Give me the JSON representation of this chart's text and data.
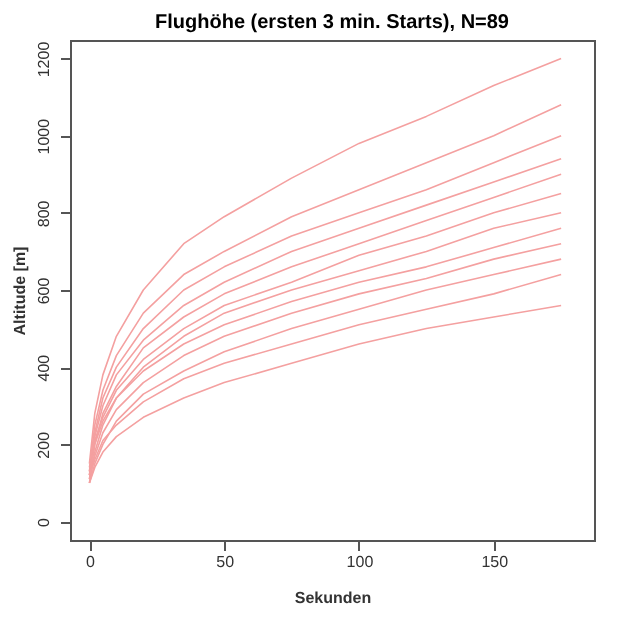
{
  "chart_data": {
    "type": "line",
    "title": "Flughöhe (ersten 3 min. Starts), N=89",
    "xlabel": "Sekunden",
    "ylabel": "Altitude [m]",
    "x": [
      0,
      2,
      5,
      10,
      20,
      35,
      50,
      75,
      100,
      125,
      150,
      175
    ],
    "series": [
      {
        "color": "#f4a0a0",
        "values": [
          150,
          280,
          380,
          480,
          600,
          720,
          790,
          890,
          980,
          1050,
          1130,
          1200
        ]
      },
      {
        "color": "#f4a0a0",
        "values": [
          130,
          250,
          340,
          430,
          540,
          640,
          700,
          790,
          860,
          930,
          1000,
          1080
        ]
      },
      {
        "color": "#f4a0a0",
        "values": [
          120,
          230,
          320,
          400,
          500,
          600,
          660,
          740,
          800,
          860,
          930,
          1000
        ]
      },
      {
        "color": "#f4a0a0",
        "values": [
          140,
          220,
          300,
          380,
          470,
          560,
          620,
          700,
          760,
          820,
          880,
          940
        ]
      },
      {
        "color": "#f4a0a0",
        "values": [
          110,
          200,
          280,
          350,
          450,
          530,
          590,
          660,
          720,
          780,
          840,
          900
        ]
      },
      {
        "color": "#f4a0a0",
        "values": [
          120,
          210,
          270,
          340,
          420,
          500,
          560,
          620,
          690,
          740,
          800,
          850
        ]
      },
      {
        "color": "#f4a0a0",
        "values": [
          100,
          180,
          250,
          320,
          400,
          480,
          540,
          600,
          650,
          700,
          760,
          800
        ]
      },
      {
        "color": "#f4a0a0",
        "values": [
          130,
          200,
          260,
          320,
          390,
          460,
          510,
          570,
          620,
          660,
          710,
          760
        ]
      },
      {
        "color": "#f4a0a0",
        "values": [
          110,
          170,
          230,
          290,
          360,
          430,
          480,
          540,
          590,
          630,
          680,
          720
        ]
      },
      {
        "color": "#f4a0a0",
        "values": [
          100,
          150,
          200,
          260,
          330,
          390,
          440,
          500,
          550,
          600,
          640,
          680
        ]
      },
      {
        "color": "#f4a0a0",
        "values": [
          120,
          160,
          210,
          250,
          310,
          370,
          410,
          460,
          510,
          550,
          590,
          640
        ]
      },
      {
        "color": "#f4a0a0",
        "values": [
          100,
          140,
          180,
          220,
          270,
          320,
          360,
          410,
          460,
          500,
          530,
          560
        ]
      }
    ],
    "xlim": [
      -7.2,
      187.2
    ],
    "xticks": [
      0,
      50,
      100,
      150
    ],
    "ylim": [
      -48,
      1248
    ],
    "yticks": [
      0,
      200,
      400,
      600,
      800,
      1000,
      1200
    ],
    "grid": false,
    "legend": false,
    "marker": "none",
    "line_style": "solid"
  }
}
